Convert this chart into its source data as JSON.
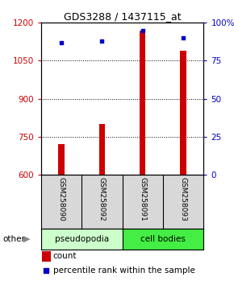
{
  "title": "GDS3288 / 1437115_at",
  "samples": [
    "GSM258090",
    "GSM258092",
    "GSM258091",
    "GSM258093"
  ],
  "groups": [
    "pseudopodia",
    "pseudopodia",
    "cell bodies",
    "cell bodies"
  ],
  "count_values": [
    720,
    800,
    1170,
    1090
  ],
  "percentile_values": [
    87,
    88,
    95,
    90
  ],
  "ylim_left": [
    600,
    1200
  ],
  "ylim_right": [
    0,
    100
  ],
  "yticks_left": [
    600,
    750,
    900,
    1050,
    1200
  ],
  "yticks_right": [
    0,
    25,
    50,
    75,
    100
  ],
  "ytick_right_labels": [
    "0",
    "25",
    "50",
    "75",
    "100%"
  ],
  "bar_color": "#cc0000",
  "dot_color": "#0000cc",
  "pseudopodia_color": "#ccffcc",
  "cell_bodies_color": "#44ee44",
  "tick_label_color_left": "#cc0000",
  "tick_label_color_right": "#0000cc",
  "background_color": "#ffffff",
  "grid_dotted_ticks": [
    750,
    900,
    1050
  ],
  "bar_width": 0.15,
  "legend_items": [
    "count",
    "percentile rank within the sample"
  ]
}
